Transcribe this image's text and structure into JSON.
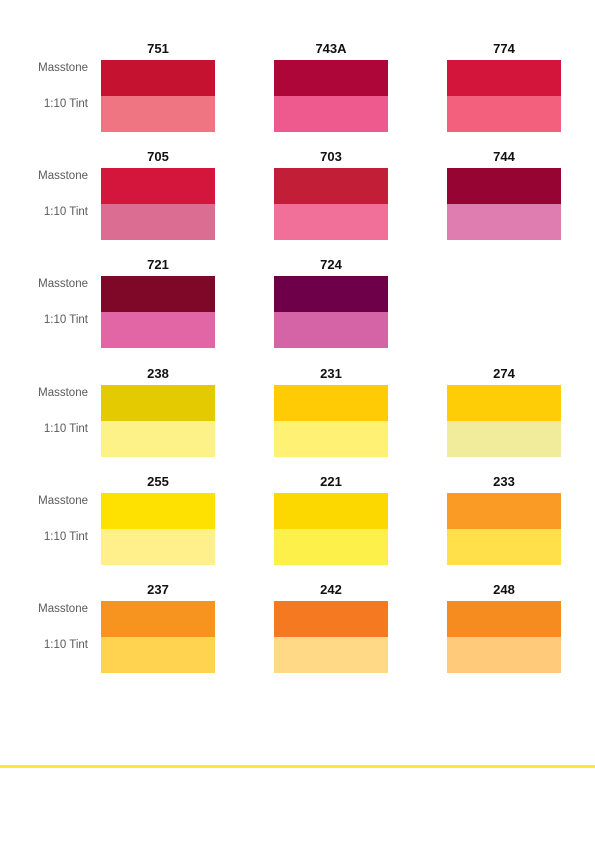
{
  "labels": {
    "masstone": "Masstone",
    "tint": "1:10 Tint"
  },
  "rows": [
    [
      {
        "code": "751",
        "masstone": "#c41230",
        "tint": "#f07583"
      },
      {
        "code": "743A",
        "masstone": "#ae0638",
        "tint": "#ef5a8e"
      },
      {
        "code": "774",
        "masstone": "#d3153c",
        "tint": "#f2607d"
      }
    ],
    [
      {
        "code": "705",
        "masstone": "#d4163c",
        "tint": "#db6c92"
      },
      {
        "code": "703",
        "masstone": "#c21e37",
        "tint": "#f17099"
      },
      {
        "code": "744",
        "masstone": "#960434",
        "tint": "#e07db0"
      }
    ],
    [
      {
        "code": "721",
        "masstone": "#7f0829",
        "tint": "#e265a5"
      },
      {
        "code": "724",
        "masstone": "#6d0049",
        "tint": "#d564a7"
      }
    ],
    [
      {
        "code": "238",
        "masstone": "#e4ca00",
        "tint": "#fdf288"
      },
      {
        "code": "231",
        "masstone": "#ffcb05",
        "tint": "#fef173"
      },
      {
        "code": "274",
        "masstone": "#fecd05",
        "tint": "#f1ec9c"
      }
    ],
    [
      {
        "code": "255",
        "masstone": "#ffe100",
        "tint": "#fff08c"
      },
      {
        "code": "221",
        "masstone": "#fdd700",
        "tint": "#fef04a"
      },
      {
        "code": "233",
        "masstone": "#f99b25",
        "tint": "#ffe04b"
      }
    ],
    [
      {
        "code": "237",
        "masstone": "#f7941f",
        "tint": "#ffd34f"
      },
      {
        "code": "242",
        "masstone": "#f47920",
        "tint": "#ffd985"
      },
      {
        "code": "248",
        "masstone": "#f68b1f",
        "tint": "#ffcb7b"
      }
    ]
  ],
  "footer_line_color": "#f5ee30"
}
